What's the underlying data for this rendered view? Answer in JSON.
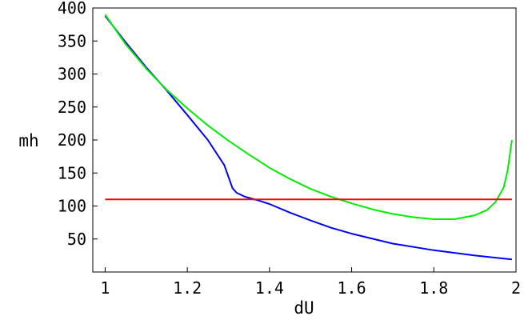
{
  "chart_data": {
    "type": "line",
    "title": "",
    "xlabel": "dU",
    "ylabel": "mh",
    "xlim": [
      0.97,
      2.0
    ],
    "ylim": [
      0,
      400
    ],
    "grid": false,
    "x_ticks": [
      1,
      1.2,
      1.4,
      1.6,
      1.8,
      2
    ],
    "x_tick_labels": [
      "1",
      "1.2",
      "1.4",
      "1.6",
      "1.8",
      "2"
    ],
    "y_ticks": [
      50,
      100,
      150,
      200,
      250,
      300,
      350,
      400
    ],
    "y_tick_labels": [
      "50",
      "100",
      "150",
      "200",
      "250",
      "300",
      "350",
      "400"
    ],
    "series": [
      {
        "color": "#0000ff",
        "x": [
          1.0,
          1.05,
          1.1,
          1.15,
          1.2,
          1.25,
          1.29,
          1.31,
          1.32,
          1.34,
          1.37,
          1.4,
          1.45,
          1.5,
          1.55,
          1.6,
          1.7,
          1.8,
          1.9,
          1.99
        ],
        "y": [
          388,
          348,
          310,
          275,
          238,
          200,
          162,
          127,
          120,
          114,
          109,
          103,
          90,
          78,
          67,
          58,
          43,
          33,
          25,
          19
        ]
      },
      {
        "color": "#00ee00",
        "x": [
          1.0,
          1.05,
          1.1,
          1.15,
          1.2,
          1.25,
          1.3,
          1.35,
          1.4,
          1.45,
          1.5,
          1.55,
          1.6,
          1.65,
          1.7,
          1.75,
          1.8,
          1.85,
          1.9,
          1.93,
          1.95,
          1.97,
          1.98,
          1.99
        ],
        "y": [
          390,
          345,
          308,
          276,
          248,
          222,
          199,
          178,
          158,
          141,
          126,
          114,
          104,
          95,
          88,
          83,
          80,
          80,
          86,
          94,
          106,
          128,
          155,
          200
        ]
      },
      {
        "color": "#ff0000",
        "x": [
          1.0,
          1.99
        ],
        "y": [
          110,
          110
        ]
      }
    ]
  }
}
